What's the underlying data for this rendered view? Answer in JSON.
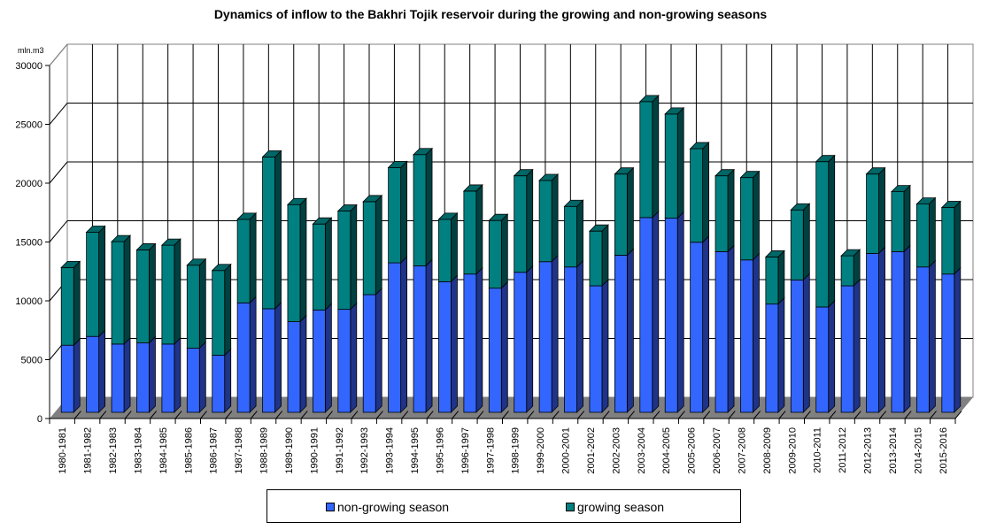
{
  "chart_data": {
    "type": "bar",
    "stacked": true,
    "three_d": true,
    "title": "Dynamics of inflow to the Bakhri Tojik reservoir during the growing and non-growing seasons",
    "xlabel": "",
    "ylabel": "mln.m3",
    "ylim": [
      0,
      30000
    ],
    "yticks": [
      0,
      5000,
      10000,
      15000,
      20000,
      25000,
      30000
    ],
    "grid": true,
    "legend_position": "bottom",
    "categories": [
      "1980-1981",
      "1981-1982",
      "1982-1983",
      "1983-1984",
      "1984-1985",
      "1985-1986",
      "1986-1987",
      "1987-1988",
      "1988-1989",
      "1989-1990",
      "1990-1991",
      "1991-1992",
      "1992-1993",
      "1993-1994",
      "1994-1995",
      "1995-1996",
      "1996-1997",
      "1997-1998",
      "1998-1999",
      "1999-2000",
      "2000-2001",
      "2001-2002",
      "2002-2003",
      "2003-2004",
      "2004-2005",
      "2005-2006",
      "2006-2007",
      "2007-2008",
      "2008-2009",
      "2009-2010",
      "2010-2011",
      "2011-2012",
      "2012-2013",
      "2013-2014",
      "2014-2015",
      "2015-2016"
    ],
    "series": [
      {
        "name": "non-growing season",
        "color": "#3366FF",
        "values": [
          5700,
          6450,
          5800,
          5900,
          5800,
          5450,
          4850,
          9300,
          8800,
          7700,
          8700,
          8750,
          10000,
          12700,
          12450,
          11100,
          11750,
          10550,
          11900,
          12800,
          12350,
          10750,
          13350,
          16550,
          16500,
          14450,
          13650,
          12950,
          9200,
          11250,
          8950,
          10750,
          13500,
          13650,
          12350,
          11750
        ]
      },
      {
        "name": "growing season",
        "color": "#008080",
        "values": [
          6600,
          8850,
          8700,
          7900,
          8400,
          7050,
          7200,
          7100,
          12900,
          9950,
          7300,
          8350,
          7900,
          8100,
          9450,
          5300,
          7050,
          5750,
          8200,
          6900,
          5150,
          4650,
          6900,
          9850,
          8850,
          7950,
          6450,
          7000,
          4000,
          5950,
          12350,
          2550,
          6750,
          5100,
          5350,
          5650
        ]
      }
    ]
  },
  "legend": {
    "items": [
      {
        "label": "non-growing season",
        "color": "#3366FF"
      },
      {
        "label": "growing season",
        "color": "#008080"
      }
    ]
  }
}
